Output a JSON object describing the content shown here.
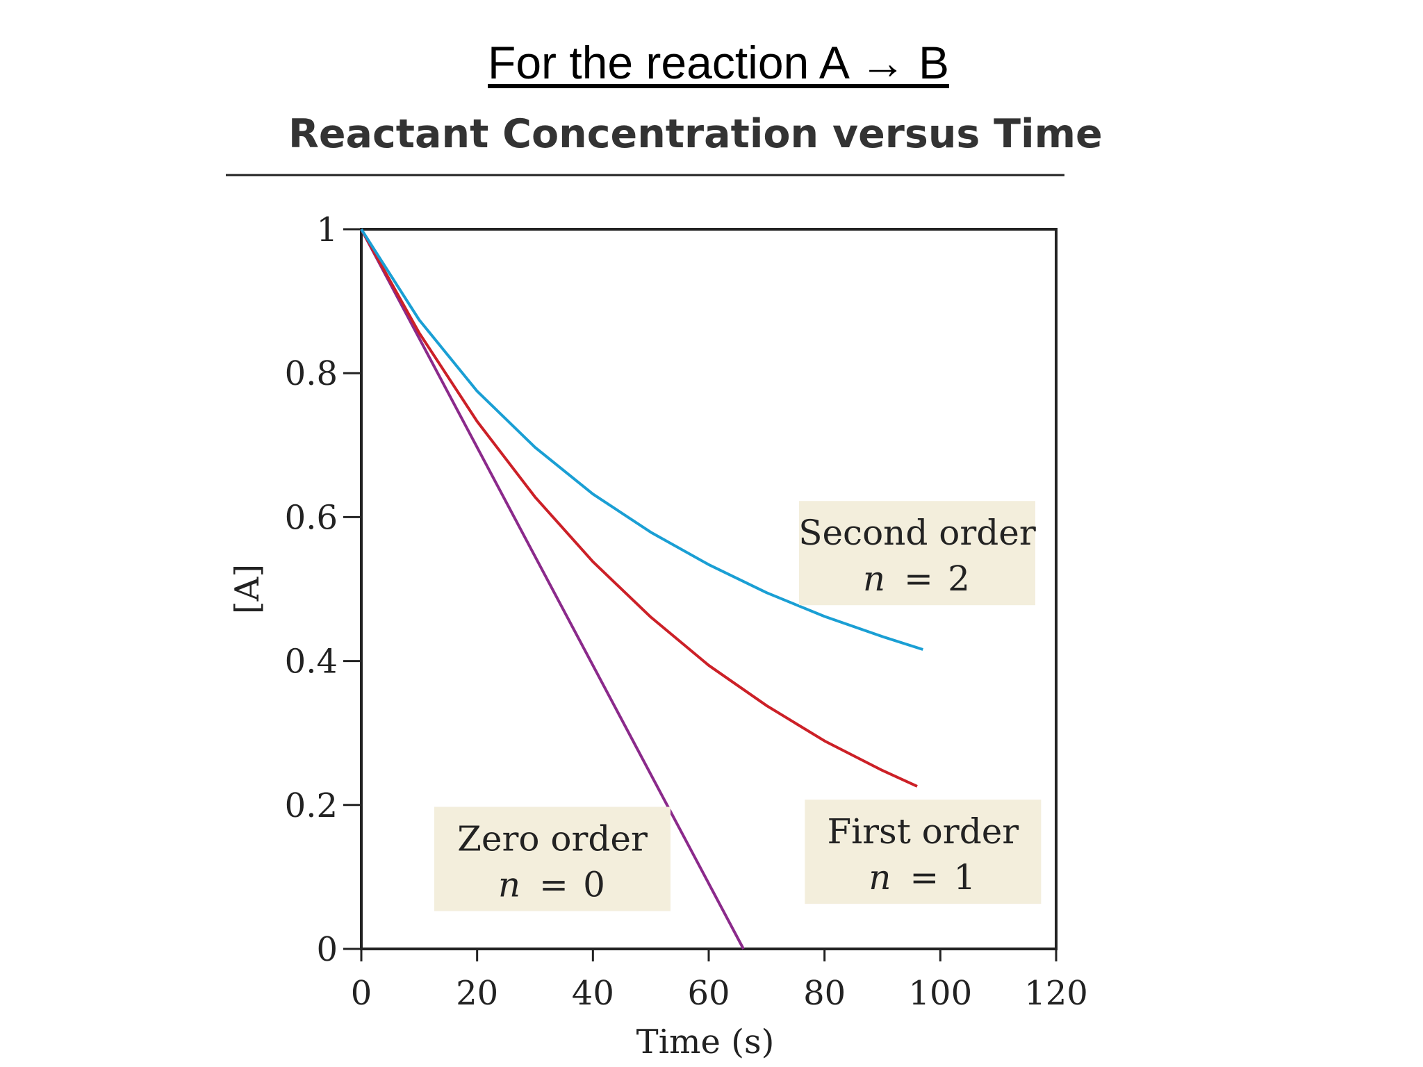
{
  "page": {
    "heading": "For the reaction A → B"
  },
  "chart_data": {
    "type": "line",
    "title": "Reactant Concentration versus Time",
    "xlabel": "Time (s)",
    "ylabel": "[A]",
    "xlim": [
      0,
      120
    ],
    "ylim": [
      0,
      1
    ],
    "xticks": [
      "0",
      "20",
      "40",
      "60",
      "80",
      "100",
      "120"
    ],
    "yticks": [
      "0",
      "0.2",
      "0.4",
      "0.6",
      "0.8",
      "1"
    ],
    "grid": false,
    "series": [
      {
        "name": "Zero order",
        "order": 0,
        "color": "#8b2a8b",
        "x": [
          0,
          66
        ],
        "y": [
          1,
          0
        ]
      },
      {
        "name": "First order",
        "order": 1,
        "color": "#cc2027",
        "x": [
          0,
          10,
          20,
          30,
          40,
          50,
          60,
          70,
          80,
          90,
          96
        ],
        "y": [
          1,
          0.856,
          0.733,
          0.628,
          0.538,
          0.461,
          0.394,
          0.338,
          0.289,
          0.248,
          0.226
        ]
      },
      {
        "name": "Second order",
        "order": 2,
        "color": "#1a9fd4",
        "x": [
          0,
          10,
          20,
          30,
          40,
          50,
          60,
          70,
          80,
          90,
          97
        ],
        "y": [
          1,
          0.874,
          0.775,
          0.697,
          0.632,
          0.579,
          0.534,
          0.495,
          0.462,
          0.434,
          0.416
        ]
      }
    ],
    "annotations": [
      {
        "line1": "Second order",
        "n_label": "n",
        "eq": "=",
        "value": "2",
        "anchor_x": 96,
        "anchor_y": 0.55
      },
      {
        "line1": "First order",
        "n_label": "n",
        "eq": "=",
        "value": "1",
        "anchor_x": 97,
        "anchor_y": 0.135
      },
      {
        "line1": "Zero order",
        "n_label": "n",
        "eq": "=",
        "value": "0",
        "anchor_x": 33,
        "anchor_y": 0.125
      }
    ],
    "annotation_bg": "#f3eedc"
  }
}
